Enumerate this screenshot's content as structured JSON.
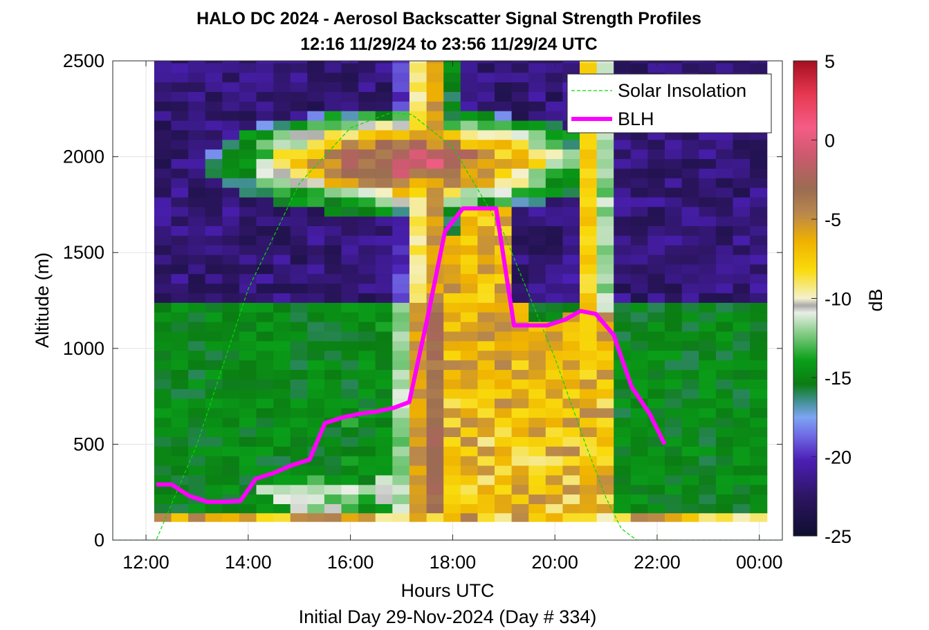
{
  "chart_data": {
    "type": "heatmap",
    "title": "HALO DC 2024 - Aerosol Backscatter Signal Strength Profiles",
    "subtitle": "12:16 11/29/24 to 23:56 11/29/24  UTC",
    "xlabel": "Hours UTC",
    "ylabel": "Altitude (m)",
    "footer": "Initial Day 29-Nov-2024 (Day # 334)",
    "xlim": [
      11.35,
      24.45
    ],
    "ylim": [
      0,
      2500
    ],
    "x_ticks": [
      12,
      14,
      16,
      18,
      20,
      22,
      24
    ],
    "x_tick_labels": [
      "12:00",
      "14:00",
      "16:00",
      "18:00",
      "20:00",
      "22:00",
      "00:00"
    ],
    "y_ticks": [
      0,
      500,
      1000,
      1500,
      2000,
      2500
    ],
    "y_tick_labels": [
      "0",
      "500",
      "1000",
      "1500",
      "2000",
      "2500"
    ],
    "grid": true,
    "colorbar": {
      "label": "dB",
      "min": -25,
      "max": 5,
      "ticks": [
        5,
        0,
        -5,
        -10,
        -15,
        -20,
        -25
      ],
      "tick_labels": [
        "5",
        "0",
        "-5",
        "-10",
        "-15",
        "-20",
        "-25"
      ]
    },
    "heatmap": {
      "x_start": 12.16,
      "x_end": 24.0,
      "x_step": 0.333,
      "y_start": 140,
      "y_end": 2500,
      "y_step": 50,
      "surface_row": {
        "y_from": 95,
        "y_to": 140,
        "value": -7
      },
      "value_scale": "dB"
    },
    "series": [
      {
        "name": "Solar Insolation",
        "style": "dashed",
        "color": "#00dd00",
        "x": [
          11.35,
          12.2,
          13.0,
          14.0,
          15.0,
          16.0,
          16.8,
          17.2,
          18.0,
          19.0,
          20.0,
          20.6,
          21.0,
          21.3,
          21.6,
          21.8,
          24.45
        ],
        "y": [
          0,
          0,
          500,
          1310,
          1860,
          2150,
          2230,
          2220,
          2050,
          1600,
          950,
          500,
          220,
          60,
          0,
          0,
          0
        ]
      },
      {
        "name": "BLH",
        "style": "solid",
        "color": "#ff00ff",
        "x": [
          12.2,
          12.5,
          12.85,
          13.2,
          13.5,
          13.85,
          14.15,
          14.5,
          14.85,
          15.2,
          15.5,
          15.85,
          16.2,
          16.5,
          16.85,
          17.15,
          17.5,
          17.85,
          18.2,
          18.5,
          18.85,
          19.2,
          19.5,
          19.85,
          20.2,
          20.5,
          20.8,
          21.15,
          21.5,
          21.85,
          22.15
        ],
        "y": [
          290,
          290,
          230,
          200,
          200,
          205,
          320,
          350,
          390,
          420,
          610,
          640,
          660,
          670,
          690,
          720,
          1150,
          1610,
          1730,
          1730,
          1730,
          1120,
          1120,
          1120,
          1150,
          1195,
          1180,
          1070,
          800,
          660,
          500
        ]
      }
    ],
    "legend": {
      "placement": "top-right",
      "entries": [
        "Solar Insolation",
        "BLH"
      ]
    }
  }
}
